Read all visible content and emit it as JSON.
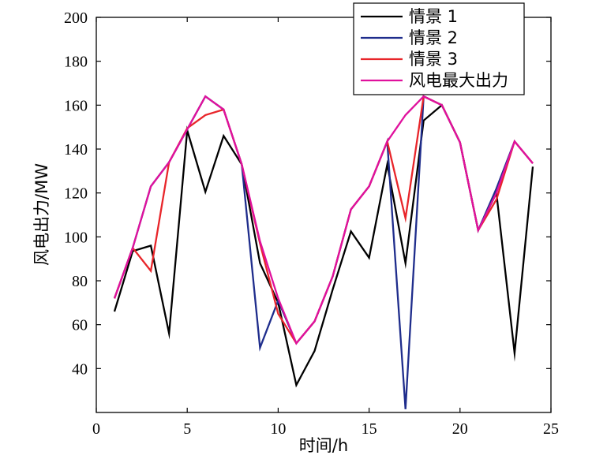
{
  "chart_data": {
    "type": "line",
    "xlabel": "时间/h",
    "ylabel": "风电出力/MW",
    "xlim": [
      0,
      25
    ],
    "ylim": [
      20,
      200
    ],
    "x_ticks": [
      0,
      5,
      10,
      15,
      20,
      25
    ],
    "y_ticks": [
      40,
      60,
      80,
      100,
      120,
      140,
      160,
      180,
      200
    ],
    "grid": false,
    "legend_position": "top-right",
    "x": [
      1,
      2,
      3,
      4,
      5,
      6,
      7,
      8,
      9,
      10,
      11,
      12,
      13,
      14,
      15,
      16,
      17,
      18,
      19,
      20,
      21,
      22,
      23,
      24
    ],
    "series": [
      {
        "name": "情景 1",
        "color": "#000000",
        "values": [
          66,
          93.5,
          96,
          56,
          148.5,
          120.5,
          146,
          133,
          88,
          70,
          32.5,
          48,
          76,
          102.5,
          90.5,
          133,
          88,
          153,
          160,
          143,
          103,
          120,
          47,
          132
        ]
      },
      {
        "name": "情景 2",
        "color": "#1f2d8c",
        "values": [
          72,
          95,
          123,
          134,
          149,
          164,
          158,
          133,
          49.5,
          71,
          51.5,
          61.5,
          82,
          112.5,
          123,
          143.5,
          21.5,
          164,
          160,
          143,
          103,
          122,
          143.5,
          133.5
        ]
      },
      {
        "name": "情景 3",
        "color": "#e8252a",
        "values": [
          72,
          95,
          84.5,
          134,
          149.5,
          155.5,
          158,
          133,
          97,
          65,
          51.5,
          61.5,
          82,
          112.5,
          123,
          143.5,
          108.5,
          164,
          160,
          143,
          103,
          117,
          143.5,
          133.5
        ]
      },
      {
        "name": "风电最大出力",
        "color": "#e0119d",
        "values": [
          72,
          95,
          123,
          134,
          149,
          164,
          158,
          133,
          98,
          72,
          51.5,
          61.5,
          82,
          112.5,
          123,
          143.5,
          155.5,
          164,
          160,
          143,
          103,
          120,
          143.5,
          133.5
        ]
      }
    ]
  }
}
